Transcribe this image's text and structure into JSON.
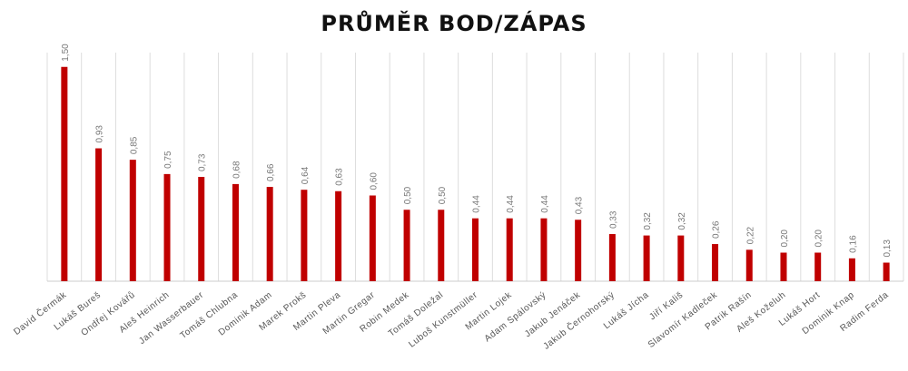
{
  "chart_data": {
    "type": "bar",
    "title": "PRŮMĚR BOD/ZÁPAS",
    "xlabel": "",
    "ylabel": "",
    "ylim": [
      0,
      1.6
    ],
    "grid": "vertical separators",
    "bar_color": "#c00000",
    "categories": [
      "David Čermák",
      "Lukáš Bureš",
      "Ondřej Kovářů",
      "Aleš Heinrich",
      "Jan Wasserbauer",
      "Tomáš Chlubna",
      "Dominik Adam",
      "Marek Prokš",
      "Martin Pleva",
      "Martin Gregar",
      "Robin Medek",
      "Tomáš Doležal",
      "Luboš Kunstmüller",
      "Martin Lojek",
      "Adam Spálovský",
      "Jakub Jenáček",
      "Jakub Černohorský",
      "Lukáš Jícha",
      "Jiří Kališ",
      "Slavomír Kadleček",
      "Patrik Rašín",
      "Aleš Koželuh",
      "Lukáš Hort",
      "Dominik Knap",
      "Radim Ferda"
    ],
    "values": [
      1.5,
      0.93,
      0.85,
      0.75,
      0.73,
      0.68,
      0.66,
      0.64,
      0.63,
      0.6,
      0.5,
      0.5,
      0.44,
      0.44,
      0.44,
      0.43,
      0.33,
      0.32,
      0.32,
      0.26,
      0.22,
      0.2,
      0.2,
      0.16,
      0.13
    ],
    "value_labels": [
      "1,50",
      "0,93",
      "0,85",
      "0,75",
      "0,73",
      "0,68",
      "0,66",
      "0,64",
      "0,63",
      "0,60",
      "0,50",
      "0,50",
      "0,44",
      "0,44",
      "0,44",
      "0,43",
      "0,33",
      "0,32",
      "0,32",
      "0,26",
      "0,22",
      "0,20",
      "0,20",
      "0,16",
      "0,13"
    ]
  }
}
